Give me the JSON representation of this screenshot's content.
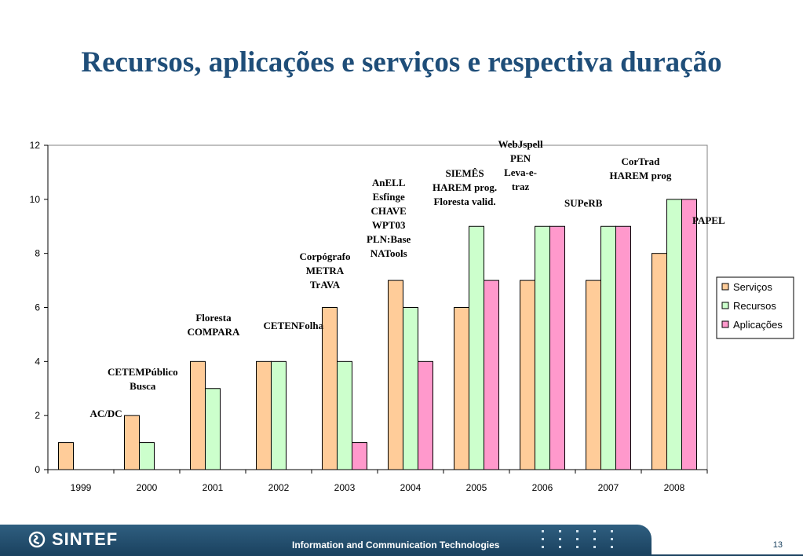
{
  "title": "Recursos, aplicações e serviços e respectiva duração",
  "chart_data": {
    "type": "bar",
    "categories": [
      "1999",
      "2000",
      "2001",
      "2002",
      "2003",
      "2004",
      "2005",
      "2006",
      "2007",
      "2008"
    ],
    "series": [
      {
        "name": "Serviços",
        "color": "#ffcc99",
        "values": [
          1,
          2,
          4,
          4,
          6,
          7,
          6,
          7,
          7,
          8
        ]
      },
      {
        "name": "Recursos",
        "color": "#ccffcc",
        "values": [
          0,
          1,
          3,
          4,
          4,
          6,
          9,
          9,
          9,
          10
        ]
      },
      {
        "name": "Aplicações",
        "color": "#ff99cc",
        "values": [
          0,
          0,
          0,
          0,
          1,
          4,
          7,
          9,
          9,
          10
        ]
      }
    ],
    "ylim": [
      0,
      12
    ],
    "yticks": [
      0,
      2,
      4,
      6,
      8,
      10,
      12
    ],
    "grid": false,
    "legend": "right",
    "annotations": [
      {
        "year": "1999",
        "lines": [
          "AC/DC"
        ]
      },
      {
        "year": "2000",
        "lines": [
          "CETEMPúblico",
          "Busca"
        ]
      },
      {
        "year": "2001",
        "lines": [
          "Floresta",
          "COMPARA"
        ]
      },
      {
        "year": "2002",
        "lines": [
          "CETENFolha"
        ]
      },
      {
        "year": "2003",
        "lines": [
          "Corpógrafo",
          "METRA",
          "TrAVA"
        ]
      },
      {
        "year": "2004",
        "lines": [
          "AnELL",
          "Esfinge",
          "CHAVE",
          "WPT03",
          "PLN:Base",
          "NATools"
        ]
      },
      {
        "year": "2005",
        "lines": [
          "SIEMÊS",
          "HAREM prog.",
          "Floresta valid."
        ]
      },
      {
        "year": "2005-2006",
        "lines": [
          "WebJspell",
          "PEN",
          "Leva-e-",
          "traz"
        ]
      },
      {
        "year": "2006",
        "lines": [
          "SUPeRB"
        ]
      },
      {
        "year": "2007",
        "lines": [
          "CorTrad",
          "HAREM prog"
        ]
      },
      {
        "year": "2008",
        "lines": [
          "PAPEL"
        ]
      }
    ]
  },
  "footer": {
    "logo": "SINTEF",
    "text": "Information and Communication Technologies",
    "page": "13"
  }
}
